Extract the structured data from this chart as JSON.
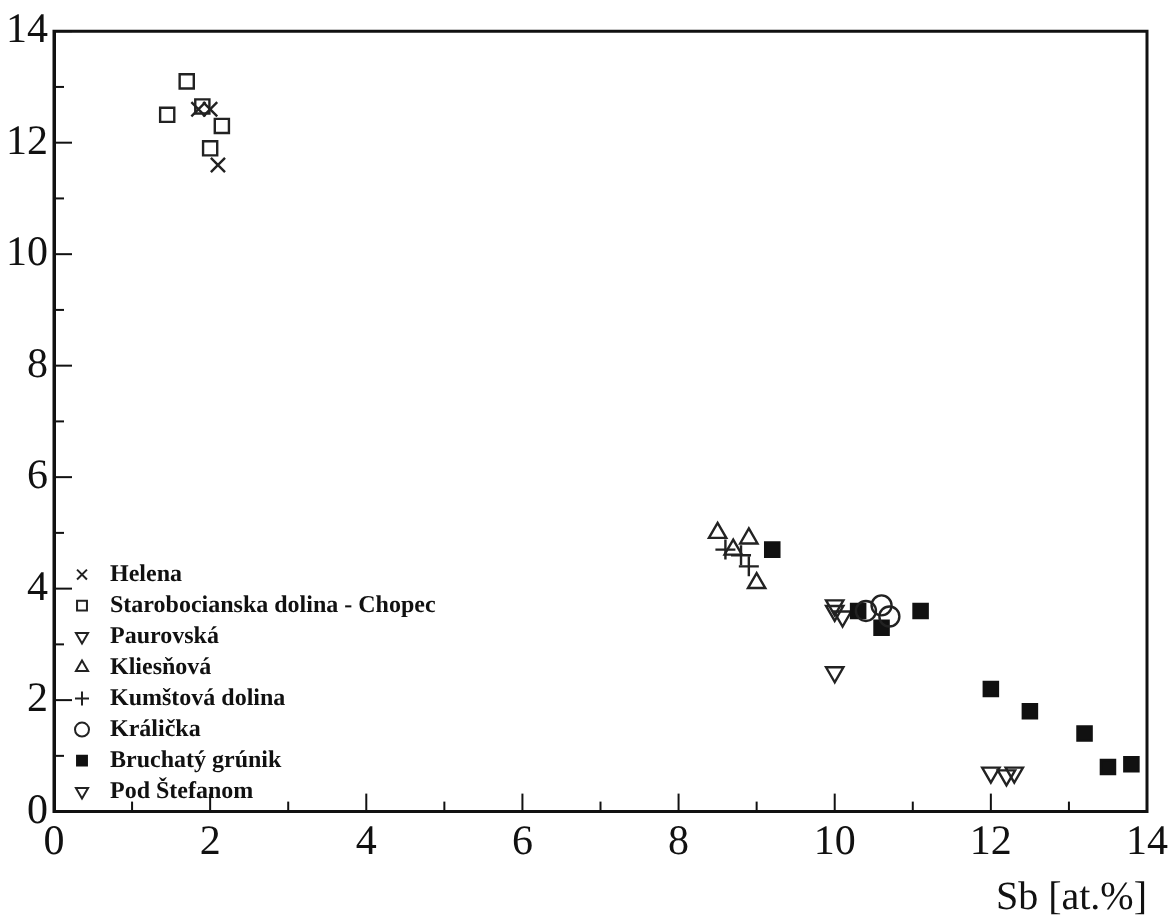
{
  "chart_data": {
    "type": "scatter",
    "xlabel": "Sb [at.%]",
    "xlim": [
      0,
      14
    ],
    "ylim": [
      0,
      14
    ],
    "xticks": [
      0,
      {
        "value": 1,
        "label": null
      },
      2,
      {
        "value": 3,
        "label": null
      },
      4,
      {
        "value": 5,
        "label": null
      },
      6,
      {
        "value": 7,
        "label": null
      },
      8,
      {
        "value": 9,
        "label": null
      },
      10,
      {
        "value": 11,
        "label": null
      },
      12,
      {
        "value": 13,
        "label": null
      },
      14
    ],
    "yticks": [
      0,
      {
        "value": 1,
        "label": null
      },
      2,
      {
        "value": 3,
        "label": null
      },
      4,
      {
        "value": 5,
        "label": null
      },
      6,
      {
        "value": 7,
        "label": null
      },
      8,
      {
        "value": 9,
        "label": null
      },
      10,
      {
        "value": 11,
        "label": null
      },
      12,
      {
        "value": 13,
        "label": null
      },
      14
    ],
    "grid": false,
    "legend": "bottom left",
    "series": [
      {
        "name": "Helena",
        "color": "#222222",
        "marker": "cross",
        "x": [
          1.85,
          2.0,
          2.1
        ],
        "values": [
          12.6,
          12.6,
          11.6
        ]
      },
      {
        "name": "Starobocianska dolina - Chopec",
        "color": "#222222",
        "marker": "square",
        "x": [
          1.7,
          1.45,
          2.15,
          2.0,
          1.9
        ],
        "values": [
          13.1,
          12.5,
          12.3,
          11.9,
          12.65
        ]
      },
      {
        "name": "Paurovská",
        "color": "#222222",
        "marker": "triangle-down",
        "x": [
          10.0,
          12.0,
          12.2,
          10.0
        ],
        "values": [
          2.5,
          0.7,
          0.65,
          3.6
        ]
      },
      {
        "name": "Kliesňová",
        "color": "#222222",
        "marker": "triangle",
        "x": [
          8.5,
          8.9,
          9.0,
          8.7
        ],
        "values": [
          5.0,
          4.9,
          4.1,
          4.7
        ]
      },
      {
        "name": "Kumštová dolina",
        "color": "#222222",
        "marker": "plus",
        "x": [
          8.6,
          8.9,
          8.8
        ],
        "values": [
          4.7,
          4.4,
          4.6
        ]
      },
      {
        "name": "Králička",
        "color": "#222222",
        "marker": "circle",
        "x": [
          10.6,
          10.7,
          10.4
        ],
        "values": [
          3.7,
          3.5,
          3.6
        ]
      },
      {
        "name": "Bruchatý grúnik",
        "color": "#111111",
        "marker": "square-filled",
        "x": [
          9.2,
          10.3,
          11.1,
          10.6,
          12.0,
          12.5,
          13.2,
          13.5,
          13.8
        ],
        "values": [
          4.7,
          3.6,
          3.6,
          3.3,
          2.2,
          1.8,
          1.4,
          0.8,
          0.85
        ]
      },
      {
        "name": "Pod Štefanom",
        "color": "#222222",
        "marker": "triangle-down",
        "x": [
          10.0,
          12.3,
          10.1
        ],
        "values": [
          3.7,
          0.7,
          3.5
        ]
      }
    ]
  }
}
